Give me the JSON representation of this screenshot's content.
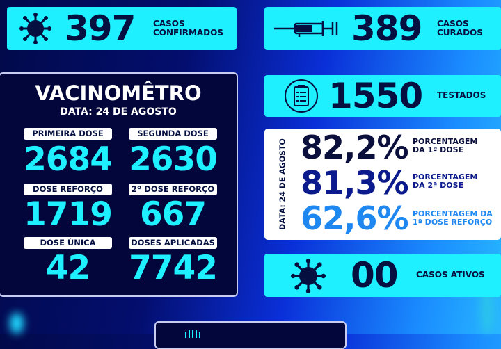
{
  "confirmed": {
    "value": "397",
    "label_line1": "CASOS",
    "label_line2": "CONFIRMADOS",
    "icon": "virus-icon"
  },
  "cured": {
    "value": "389",
    "label_line1": "CASOS",
    "label_line2": "CURADOS",
    "icon": "syringe-icon"
  },
  "tested": {
    "value": "1550",
    "label": "TESTADOS",
    "icon": "clipboard-icon"
  },
  "active": {
    "value": "00",
    "label": "CASOS ATIVOS",
    "icon": "virus-icon"
  },
  "vaccine": {
    "title": "VACINOMÊTRO",
    "date": "DATA: 24 DE AGOSTO",
    "items": [
      {
        "label": "PRIMEIRA DOSE",
        "value": "2684"
      },
      {
        "label": "SEGUNDA DOSE",
        "value": "2630"
      },
      {
        "label": "DOSE REFORÇO",
        "value": "1719"
      },
      {
        "label": "2º DOSE REFORÇO",
        "value": "667"
      },
      {
        "label": "DOSE ÚNICA",
        "value": "42"
      },
      {
        "label": "DOSES APLICADAS",
        "value": "7742"
      }
    ]
  },
  "percentages": {
    "date": "DATA: 24 DE AGOSTO",
    "items": [
      {
        "value": "82,2%",
        "line1": "PORCENTAGEM",
        "line2": "DA 1ª DOSE",
        "color": "#0a0f3c"
      },
      {
        "value": "81,3%",
        "line1": "PORCENTAGEM",
        "line2": "DA 2ª DOSE",
        "color": "#0b1a8c"
      },
      {
        "value": "62,6%",
        "line1": "PORCENTAGEM DA",
        "line2": "1ª DOSE REFORÇO",
        "color": "#1e88f0"
      }
    ]
  },
  "colors": {
    "cyan": "#1ff0ff",
    "navy": "#03063a"
  }
}
